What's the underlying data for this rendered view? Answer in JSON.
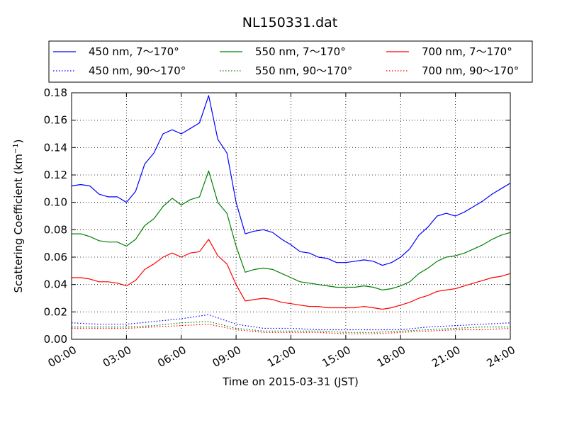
{
  "chart_data": {
    "type": "line",
    "title": "NL150331.dat",
    "xlabel": "Time on 2015-03-31 (JST)",
    "ylabel": "Scattering Coefficient (km",
    "ylabel_sup": "−1",
    "ylabel_tail": ")",
    "xlim": [
      0,
      24
    ],
    "ylim": [
      0,
      0.18
    ],
    "grid": true,
    "legend_position": "top, above plot, 3 columns",
    "x_ticks": [
      0,
      3,
      6,
      9,
      12,
      15,
      18,
      21,
      24
    ],
    "x_tick_labels": [
      "00:00",
      "03:00",
      "06:00",
      "09:00",
      "12:00",
      "15:00",
      "18:00",
      "21:00",
      "24:00"
    ],
    "y_ticks": [
      0,
      0.02,
      0.04,
      0.06,
      0.08,
      0.1,
      0.12,
      0.14,
      0.16,
      0.18
    ],
    "y_tick_labels": [
      "0.00",
      "0.02",
      "0.04",
      "0.06",
      "0.08",
      "0.10",
      "0.12",
      "0.14",
      "0.16",
      "0.18"
    ],
    "series": [
      {
        "name": "450 nm, 7～170°",
        "color": "#0000ff",
        "style": "solid",
        "x": [
          0,
          0.5,
          1,
          1.5,
          2,
          2.5,
          3,
          3.5,
          4,
          4.5,
          5,
          5.5,
          6,
          6.5,
          7,
          7.5,
          8,
          8.5,
          9,
          9.5,
          10,
          10.5,
          11,
          11.5,
          12,
          12.5,
          13,
          13.5,
          14,
          14.5,
          15,
          15.5,
          16,
          16.5,
          17,
          17.5,
          18,
          18.5,
          19,
          19.5,
          20,
          20.5,
          21,
          21.5,
          22,
          22.5,
          23,
          23.5,
          24
        ],
        "y": [
          0.112,
          0.113,
          0.112,
          0.106,
          0.104,
          0.104,
          0.1,
          0.108,
          0.128,
          0.136,
          0.15,
          0.153,
          0.15,
          0.154,
          0.158,
          0.178,
          0.146,
          0.136,
          0.1,
          0.077,
          0.079,
          0.08,
          0.078,
          0.073,
          0.069,
          0.064,
          0.063,
          0.06,
          0.059,
          0.056,
          0.056,
          0.057,
          0.058,
          0.057,
          0.054,
          0.056,
          0.06,
          0.066,
          0.076,
          0.082,
          0.09,
          0.092,
          0.09,
          0.093,
          0.097,
          0.101,
          0.106,
          0.11,
          0.114
        ]
      },
      {
        "name": "550 nm, 7～170°",
        "color": "#008000",
        "style": "solid",
        "x": [
          0,
          0.5,
          1,
          1.5,
          2,
          2.5,
          3,
          3.5,
          4,
          4.5,
          5,
          5.5,
          6,
          6.5,
          7,
          7.5,
          8,
          8.5,
          9,
          9.5,
          10,
          10.5,
          11,
          11.5,
          12,
          12.5,
          13,
          13.5,
          14,
          14.5,
          15,
          15.5,
          16,
          16.5,
          17,
          17.5,
          18,
          18.5,
          19,
          19.5,
          20,
          20.5,
          21,
          21.5,
          22,
          22.5,
          23,
          23.5,
          24
        ],
        "y": [
          0.077,
          0.077,
          0.075,
          0.072,
          0.071,
          0.071,
          0.068,
          0.073,
          0.083,
          0.088,
          0.097,
          0.103,
          0.098,
          0.102,
          0.104,
          0.123,
          0.1,
          0.092,
          0.068,
          0.049,
          0.051,
          0.052,
          0.051,
          0.048,
          0.045,
          0.042,
          0.041,
          0.04,
          0.039,
          0.038,
          0.038,
          0.038,
          0.039,
          0.038,
          0.036,
          0.037,
          0.039,
          0.042,
          0.048,
          0.052,
          0.057,
          0.06,
          0.061,
          0.063,
          0.066,
          0.069,
          0.073,
          0.076,
          0.078
        ]
      },
      {
        "name": "700 nm, 7～170°",
        "color": "#ff0000",
        "style": "solid",
        "x": [
          0,
          0.5,
          1,
          1.5,
          2,
          2.5,
          3,
          3.5,
          4,
          4.5,
          5,
          5.5,
          6,
          6.5,
          7,
          7.5,
          8,
          8.5,
          9,
          9.5,
          10,
          10.5,
          11,
          11.5,
          12,
          12.5,
          13,
          13.5,
          14,
          14.5,
          15,
          15.5,
          16,
          16.5,
          17,
          17.5,
          18,
          18.5,
          19,
          19.5,
          20,
          20.5,
          21,
          21.5,
          22,
          22.5,
          23,
          23.5,
          24
        ],
        "y": [
          0.045,
          0.045,
          0.044,
          0.042,
          0.042,
          0.041,
          0.039,
          0.043,
          0.051,
          0.055,
          0.06,
          0.063,
          0.06,
          0.063,
          0.064,
          0.073,
          0.061,
          0.055,
          0.04,
          0.028,
          0.029,
          0.03,
          0.029,
          0.027,
          0.026,
          0.025,
          0.024,
          0.024,
          0.023,
          0.023,
          0.023,
          0.023,
          0.024,
          0.023,
          0.022,
          0.023,
          0.025,
          0.027,
          0.03,
          0.032,
          0.035,
          0.036,
          0.037,
          0.039,
          0.041,
          0.043,
          0.045,
          0.046,
          0.048
        ]
      },
      {
        "name": "450 nm, 90～170°",
        "color": "#0000ff",
        "style": "dotted",
        "x": [
          0,
          1.5,
          3,
          4.5,
          6,
          7.5,
          9,
          10.5,
          12,
          13.5,
          15,
          16.5,
          18,
          19.5,
          21,
          22.5,
          24
        ],
        "y": [
          0.012,
          0.011,
          0.011,
          0.013,
          0.015,
          0.018,
          0.011,
          0.008,
          0.008,
          0.007,
          0.007,
          0.007,
          0.007,
          0.009,
          0.01,
          0.011,
          0.012
        ]
      },
      {
        "name": "550 nm, 90～170°",
        "color": "#008000",
        "style": "dotted",
        "x": [
          0,
          1.5,
          3,
          4.5,
          6,
          7.5,
          9,
          10.5,
          12,
          13.5,
          15,
          16.5,
          18,
          19.5,
          21,
          22.5,
          24
        ],
        "y": [
          0.009,
          0.009,
          0.009,
          0.01,
          0.012,
          0.013,
          0.008,
          0.006,
          0.006,
          0.006,
          0.005,
          0.005,
          0.006,
          0.007,
          0.008,
          0.009,
          0.009
        ]
      },
      {
        "name": "700 nm, 90～170°",
        "color": "#ff0000",
        "style": "dotted",
        "x": [
          0,
          1.5,
          3,
          4.5,
          6,
          7.5,
          9,
          10.5,
          12,
          13.5,
          15,
          16.5,
          18,
          19.5,
          21,
          22.5,
          24
        ],
        "y": [
          0.008,
          0.008,
          0.008,
          0.009,
          0.01,
          0.011,
          0.007,
          0.005,
          0.005,
          0.005,
          0.004,
          0.004,
          0.005,
          0.006,
          0.007,
          0.007,
          0.008
        ]
      }
    ]
  }
}
